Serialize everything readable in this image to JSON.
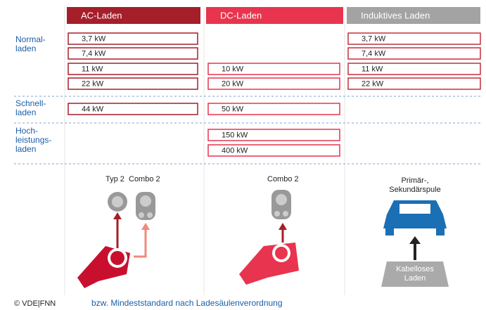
{
  "columns": [
    {
      "title": "AC-Laden"
    },
    {
      "title": "DC-Laden"
    },
    {
      "title": "Induktives Laden"
    }
  ],
  "groups": [
    {
      "label": [
        "Normal-",
        "laden"
      ],
      "rows": [
        [
          "3,7 kW",
          null,
          "3,7 kW"
        ],
        [
          "7,4 kW",
          null,
          "7,4 kW"
        ],
        [
          "11 kW",
          "10 kW",
          "11 kW"
        ],
        [
          "22 kW",
          "20 kW",
          "22 kW"
        ]
      ]
    },
    {
      "label": [
        "Schnell-",
        "laden"
      ],
      "rows": [
        [
          "44 kW",
          "50 kW",
          null
        ]
      ]
    },
    {
      "label": [
        "Hoch-",
        "leistungs-",
        "laden"
      ],
      "rows": [
        [
          null,
          "150 kW",
          null
        ],
        [
          null,
          "400 kW",
          null
        ]
      ]
    }
  ],
  "connectors": {
    "ac": [
      "Typ 2",
      "Combo 2"
    ],
    "dc": "Combo 2",
    "inductive": [
      "Primär-,",
      "Sekundärspule"
    ],
    "pad": [
      "Kabelloses",
      "Laden"
    ]
  },
  "footer": {
    "credit": "© VDE|FNN",
    "note": "bzw. Mindeststandard nach Ladesäulenverordnung"
  }
}
